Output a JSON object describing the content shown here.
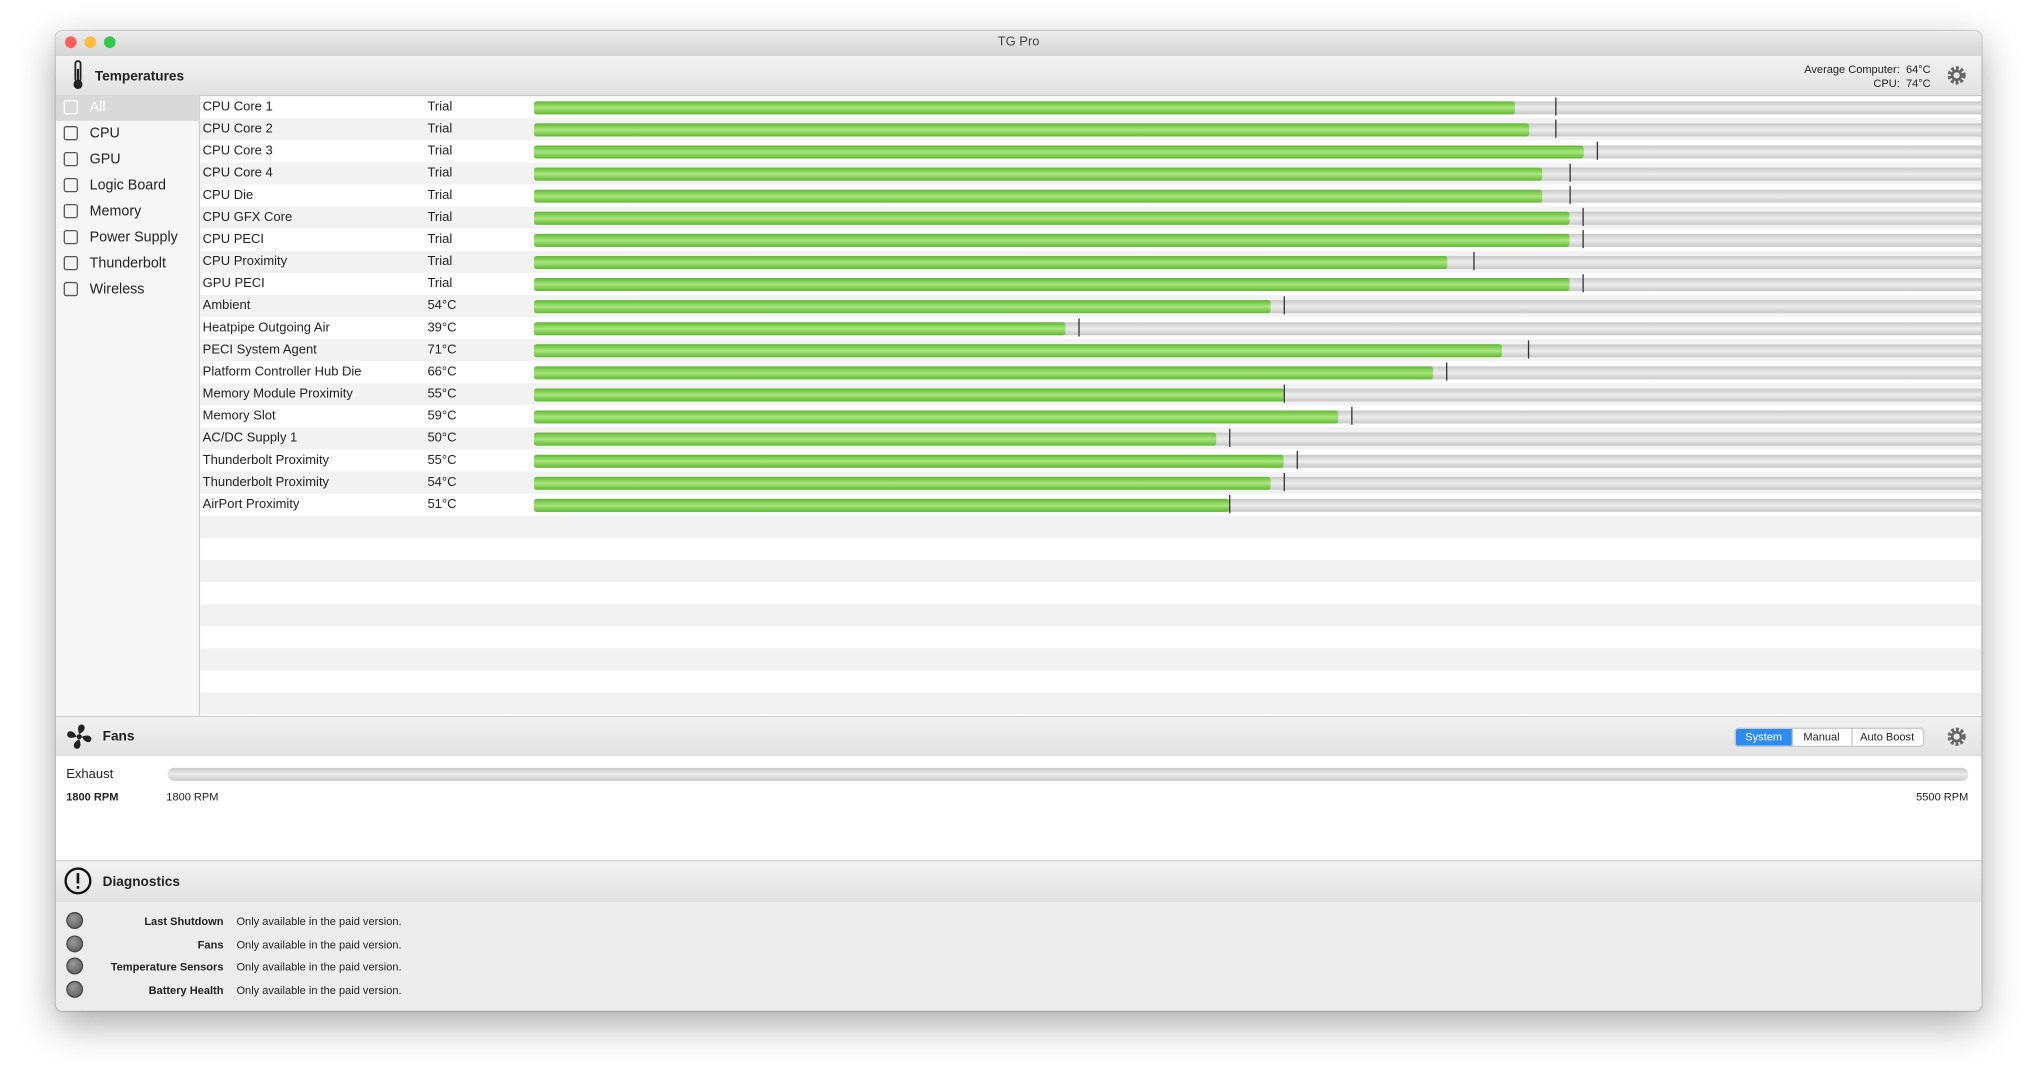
{
  "window": {
    "title": "TG Pro"
  },
  "temperatures": {
    "title": "Temperatures",
    "summary": [
      {
        "label": "Average Computer:",
        "value": "64°C"
      },
      {
        "label": "CPU:",
        "value": "74°C"
      }
    ],
    "sidebar": [
      "All",
      "CPU",
      "GPU",
      "Logic Board",
      "Memory",
      "Power Supply",
      "Thunderbolt",
      "Wireless"
    ],
    "scale": [
      0,
      110
    ],
    "sensors": [
      {
        "name": "CPU Core 1",
        "reading": "Trial",
        "level": 72,
        "max": 75
      },
      {
        "name": "CPU Core 2",
        "reading": "Trial",
        "level": 73,
        "max": 75
      },
      {
        "name": "CPU Core 3",
        "reading": "Trial",
        "level": 77,
        "max": 78
      },
      {
        "name": "CPU Core 4",
        "reading": "Trial",
        "level": 74,
        "max": 76
      },
      {
        "name": "CPU Die",
        "reading": "Trial",
        "level": 74,
        "max": 76
      },
      {
        "name": "CPU GFX Core",
        "reading": "Trial",
        "level": 76,
        "max": 77
      },
      {
        "name": "CPU PECI",
        "reading": "Trial",
        "level": 76,
        "max": 77
      },
      {
        "name": "CPU Proximity",
        "reading": "Trial",
        "level": 67,
        "max": 69
      },
      {
        "name": "GPU PECI",
        "reading": "Trial",
        "level": 76,
        "max": 77
      },
      {
        "name": "Ambient",
        "reading": "54°C",
        "level": 54,
        "max": 55
      },
      {
        "name": "Heatpipe Outgoing Air",
        "reading": "39°C",
        "level": 39,
        "max": 40
      },
      {
        "name": "PECI System Agent",
        "reading": "71°C",
        "level": 71,
        "max": 73
      },
      {
        "name": "Platform Controller Hub Die",
        "reading": "66°C",
        "level": 66,
        "max": 67
      },
      {
        "name": "Memory Module Proximity",
        "reading": "55°C",
        "level": 55,
        "max": 55
      },
      {
        "name": "Memory Slot",
        "reading": "59°C",
        "level": 59,
        "max": 60
      },
      {
        "name": "AC/DC Supply 1",
        "reading": "50°C",
        "level": 50,
        "max": 51
      },
      {
        "name": "Thunderbolt Proximity",
        "reading": "55°C",
        "level": 55,
        "max": 56
      },
      {
        "name": "Thunderbolt Proximity",
        "reading": "54°C",
        "level": 54,
        "max": 55
      },
      {
        "name": "AirPort Proximity",
        "reading": "51°C",
        "level": 51,
        "max": 51
      }
    ]
  },
  "fans": {
    "title": "Fans",
    "modes": [
      "System",
      "Manual",
      "Auto Boost"
    ],
    "fan": {
      "name": "Exhaust",
      "speed": "1800 RPM",
      "min": "1800 RPM",
      "max": "5500 RPM"
    }
  },
  "diagnostics": {
    "title": "Diagnostics",
    "items": [
      {
        "label": "Last Shutdown",
        "status": "Only available in the paid version."
      },
      {
        "label": "Fans",
        "status": "Only available in the paid version."
      },
      {
        "label": "Temperature Sensors",
        "status": "Only available in the paid version."
      },
      {
        "label": "Battery Health",
        "status": "Only available in the paid version."
      }
    ]
  }
}
